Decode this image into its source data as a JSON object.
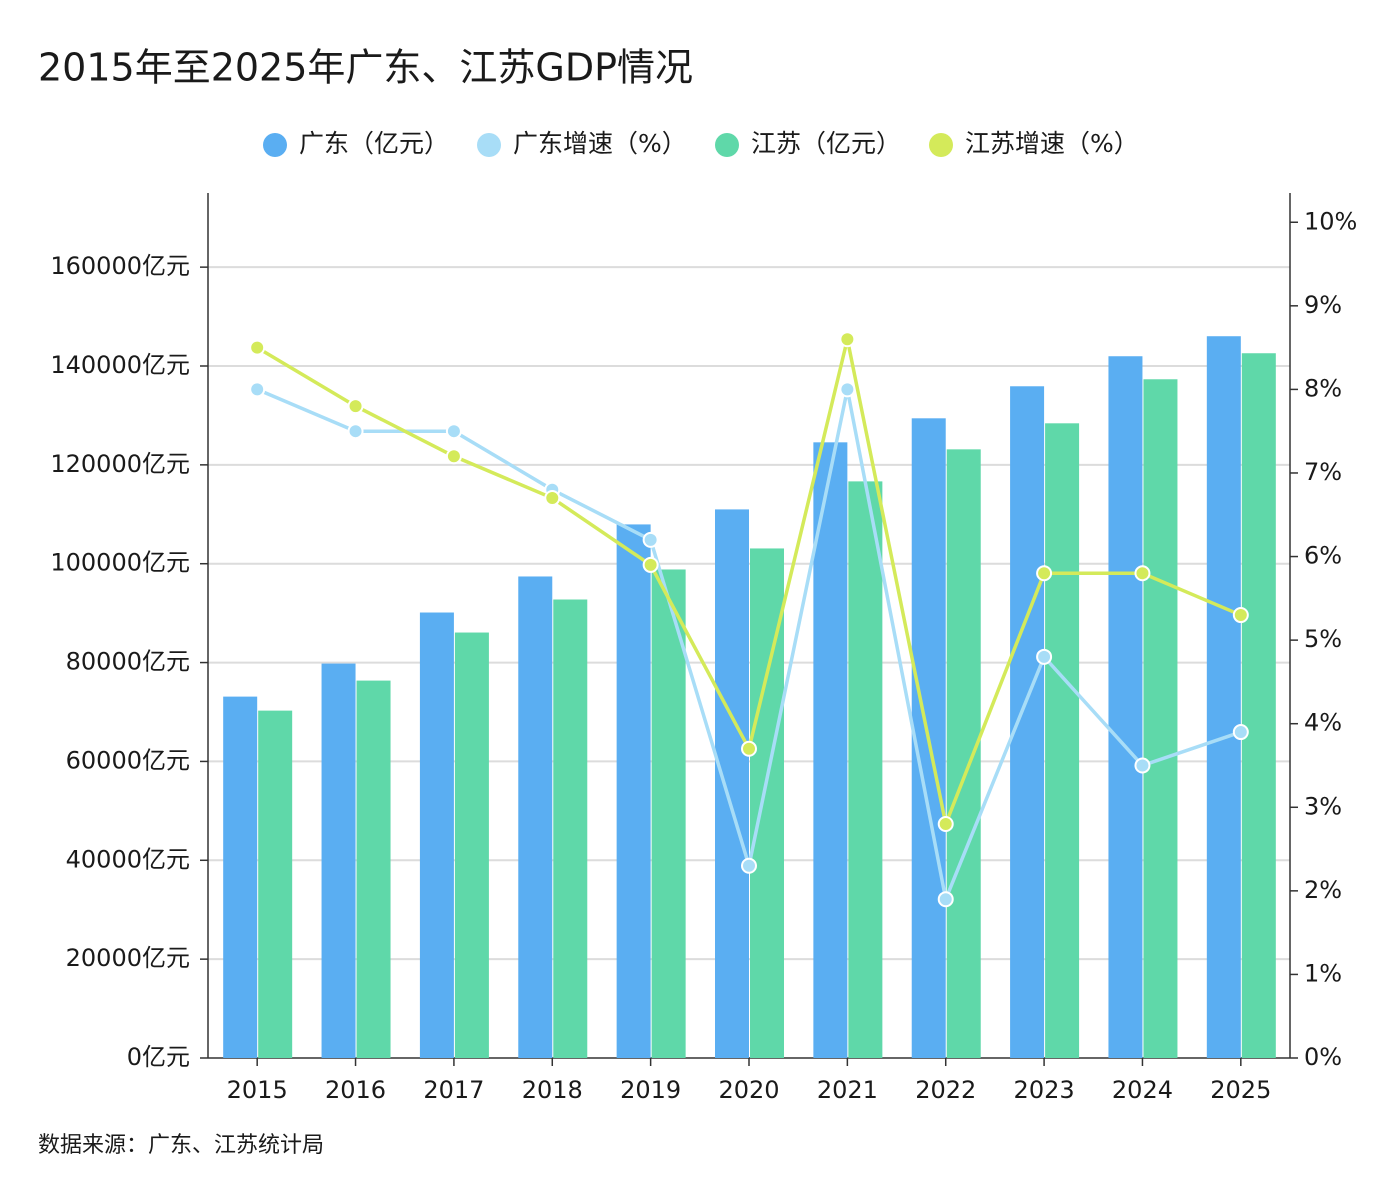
{
  "chart_data": {
    "type": "bar",
    "title": "2015年至2025年广东、江苏GDP情况",
    "source": "数据来源：广东、江苏统计局",
    "categories": [
      "2015",
      "2016",
      "2017",
      "2018",
      "2019",
      "2020",
      "2021",
      "2022",
      "2023",
      "2024",
      "2025"
    ],
    "series": [
      {
        "name": "广东（亿元）",
        "color": "#5aaef2",
        "type": "bar",
        "values": [
          73114,
          79797,
          90127,
          97418,
          107950,
          110987,
          124557,
          129418,
          135899,
          141975,
          146025
        ]
      },
      {
        "name": "广东增速（%）",
        "color": "#a8ddf7",
        "type": "line",
        "axis": "y2",
        "values": [
          8.0,
          7.5,
          7.5,
          6.8,
          6.2,
          2.3,
          8.0,
          1.9,
          4.8,
          3.5,
          3.9
        ]
      },
      {
        "name": "江苏（亿元）",
        "color": "#5fd8a9",
        "type": "bar",
        "values": [
          70278,
          76354,
          86076,
          92759,
          98835,
          103089,
          116658,
          123139,
          128405,
          137316,
          142582
        ]
      },
      {
        "name": "江苏增速（%）",
        "color": "#d4ea5a",
        "type": "line",
        "axis": "y2",
        "values": [
          8.5,
          7.8,
          7.2,
          6.7,
          5.9,
          3.7,
          8.6,
          2.8,
          5.8,
          5.8,
          5.3
        ]
      }
    ],
    "ylim": [
      0,
      175000
    ],
    "yticks": [
      {
        "value": 0,
        "label": "0亿元"
      },
      {
        "value": 20000,
        "label": "20000亿元"
      },
      {
        "value": 40000,
        "label": "40000亿元"
      },
      {
        "value": 60000,
        "label": "60000亿元"
      },
      {
        "value": 80000,
        "label": "80000亿元"
      },
      {
        "value": 100000,
        "label": "100000亿元"
      },
      {
        "value": 120000,
        "label": "120000亿元"
      },
      {
        "value": 140000,
        "label": "140000亿元"
      },
      {
        "value": 160000,
        "label": "160000亿元"
      }
    ],
    "y2lim": [
      0,
      10.35
    ],
    "y2ticks": [
      {
        "value": 0,
        "label": "0%"
      },
      {
        "value": 1,
        "label": "1%"
      },
      {
        "value": 2,
        "label": "2%"
      },
      {
        "value": 3,
        "label": "3%"
      },
      {
        "value": 4,
        "label": "4%"
      },
      {
        "value": 5,
        "label": "5%"
      },
      {
        "value": 6,
        "label": "6%"
      },
      {
        "value": 7,
        "label": "7%"
      },
      {
        "value": 8,
        "label": "8%"
      },
      {
        "value": 9,
        "label": "9%"
      },
      {
        "value": 10,
        "label": "10%"
      }
    ],
    "grid": true,
    "legend": "top"
  }
}
